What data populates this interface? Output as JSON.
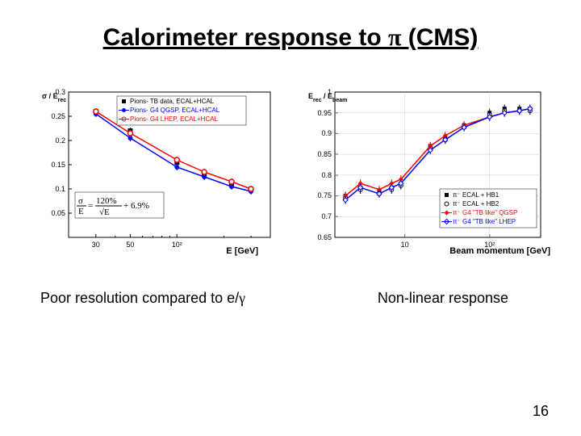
{
  "title_parts": [
    "Calorimeter response to ",
    "π",
    " (CMS)"
  ],
  "left_chart": {
    "ylabel": "σ / E_rec",
    "xlabel": "E [GeV]",
    "ylim": [
      0,
      0.3
    ],
    "yticks": [
      0.05,
      0.1,
      0.15,
      0.2,
      0.25,
      0.3
    ],
    "xlim": [
      20,
      400
    ],
    "xticks_major": [
      30,
      50,
      100
    ],
    "xticks_minor": [
      40,
      60,
      70,
      80,
      90,
      200,
      300
    ],
    "x_log": true,
    "series": [
      {
        "name": "Pions- TB data, ECAL+HCAL",
        "color": "#000000",
        "marker": "square-filled",
        "points": [
          [
            30,
            0.26
          ],
          [
            50,
            0.22
          ],
          [
            100,
            0.155
          ],
          [
            150,
            0.13
          ],
          [
            225,
            0.11
          ],
          [
            300,
            0.1
          ]
        ]
      },
      {
        "name": "Pions- G4 QGSP, ECAL+HCAL",
        "color": "#0000ff",
        "marker": "circle-filled",
        "points": [
          [
            30,
            0.255
          ],
          [
            50,
            0.205
          ],
          [
            100,
            0.145
          ],
          [
            150,
            0.125
          ],
          [
            225,
            0.105
          ],
          [
            300,
            0.095
          ]
        ]
      },
      {
        "name": "Pions- G4 LHEP, ECAL+HCAL",
        "color": "#ff0000",
        "marker": "circle-open",
        "points": [
          [
            30,
            0.26
          ],
          [
            50,
            0.215
          ],
          [
            100,
            0.16
          ],
          [
            150,
            0.135
          ],
          [
            225,
            0.115
          ],
          [
            300,
            0.1
          ]
        ]
      }
    ],
    "formula": "σ/E = 120%/√E + 6.9%",
    "grid_color": "#cccccc",
    "background": "#ffffff"
  },
  "right_chart": {
    "ylabel": "E_rec / E_beam",
    "xlabel": "Beam momentum [GeV]",
    "ylim": [
      0.65,
      1.0
    ],
    "yticks": [
      0.65,
      0.7,
      0.75,
      0.8,
      0.85,
      0.9,
      0.95,
      1.0
    ],
    "xlim": [
      1.5,
      400
    ],
    "xticks_major": [
      10,
      100
    ],
    "x_log": true,
    "series": [
      {
        "name": "π⁻ ECAL + HB1",
        "color": "#000000",
        "marker": "square-filled",
        "points": [
          [
            2,
            0.75
          ],
          [
            3,
            0.77
          ],
          [
            5,
            0.76
          ],
          [
            7,
            0.77
          ],
          [
            9,
            0.78
          ],
          [
            20,
            0.87
          ],
          [
            30,
            0.89
          ],
          [
            50,
            0.92
          ],
          [
            100,
            0.95
          ],
          [
            150,
            0.96
          ],
          [
            225,
            0.96
          ],
          [
            300,
            0.96
          ]
        ]
      },
      {
        "name": "π⁻ ECAL + HB2",
        "color": "#000000",
        "marker": "circle-open",
        "points": [
          [
            2,
            0.745
          ],
          [
            3,
            0.765
          ],
          [
            5,
            0.755
          ],
          [
            7,
            0.765
          ],
          [
            9,
            0.775
          ],
          [
            20,
            0.865
          ],
          [
            30,
            0.885
          ],
          [
            50,
            0.915
          ],
          [
            100,
            0.945
          ],
          [
            150,
            0.955
          ],
          [
            225,
            0.955
          ],
          [
            300,
            0.955
          ]
        ]
      },
      {
        "name": "π⁻ G4 \"TB like\" QGSP",
        "color": "#ff0000",
        "marker": "diamond-filled",
        "points": [
          [
            2,
            0.75
          ],
          [
            3,
            0.78
          ],
          [
            5,
            0.765
          ],
          [
            7,
            0.78
          ],
          [
            9,
            0.79
          ],
          [
            20,
            0.87
          ],
          [
            30,
            0.895
          ],
          [
            50,
            0.92
          ],
          [
            100,
            0.94
          ],
          [
            150,
            0.95
          ],
          [
            225,
            0.955
          ],
          [
            300,
            0.96
          ]
        ]
      },
      {
        "name": "π⁻ G4 \"TB like\" LHEP",
        "color": "#0000ff",
        "marker": "diamond-open",
        "points": [
          [
            2,
            0.74
          ],
          [
            3,
            0.77
          ],
          [
            5,
            0.755
          ],
          [
            7,
            0.77
          ],
          [
            9,
            0.78
          ],
          [
            20,
            0.86
          ],
          [
            30,
            0.885
          ],
          [
            50,
            0.915
          ],
          [
            100,
            0.94
          ],
          [
            150,
            0.95
          ],
          [
            225,
            0.955
          ],
          [
            300,
            0.96
          ]
        ]
      }
    ],
    "grid_color": "#cccccc",
    "background": "#ffffff"
  },
  "left_caption_parts": [
    "Poor resolution compared to e/",
    "γ"
  ],
  "right_caption": "Non-linear response",
  "page_number": "16"
}
